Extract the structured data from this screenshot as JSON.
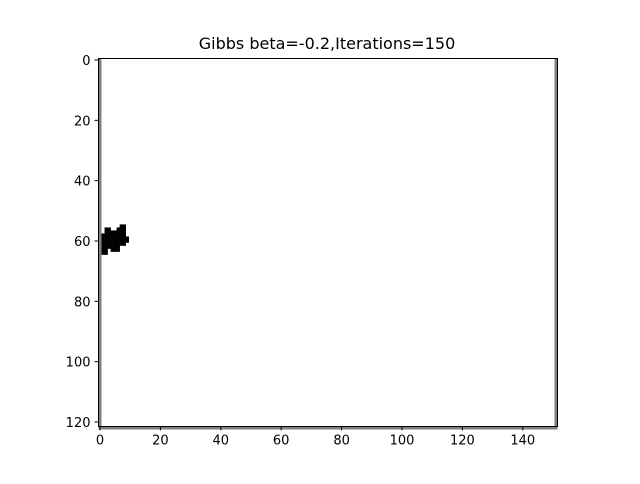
{
  "chart_data": {
    "type": "heatmap",
    "title": "Gibbs beta=-0.2,Iterations=150",
    "xlabel": "",
    "ylabel": "",
    "xlim": [
      -0.5,
      151.5
    ],
    "ylim": [
      121.5,
      -0.5
    ],
    "x_ticks": [
      0,
      20,
      40,
      60,
      80,
      100,
      120,
      140
    ],
    "y_ticks": [
      0,
      20,
      40,
      60,
      80,
      100,
      120
    ],
    "grid": false,
    "colormap": "gray",
    "background_value": "white",
    "cell_value": "black",
    "black_cells": [
      [
        2,
        56
      ],
      [
        3,
        56
      ],
      [
        7,
        55
      ],
      [
        8,
        55
      ],
      [
        2,
        57
      ],
      [
        3,
        57
      ],
      [
        4,
        57
      ],
      [
        5,
        57
      ],
      [
        6,
        57
      ],
      [
        7,
        57
      ],
      [
        8,
        57
      ],
      [
        1,
        58
      ],
      [
        2,
        58
      ],
      [
        3,
        58
      ],
      [
        4,
        58
      ],
      [
        5,
        58
      ],
      [
        6,
        58
      ],
      [
        7,
        58
      ],
      [
        8,
        58
      ],
      [
        1,
        59
      ],
      [
        2,
        59
      ],
      [
        3,
        59
      ],
      [
        4,
        59
      ],
      [
        5,
        59
      ],
      [
        6,
        59
      ],
      [
        7,
        59
      ],
      [
        8,
        59
      ],
      [
        9,
        59
      ],
      [
        1,
        60
      ],
      [
        2,
        60
      ],
      [
        3,
        60
      ],
      [
        4,
        60
      ],
      [
        5,
        60
      ],
      [
        6,
        60
      ],
      [
        7,
        60
      ],
      [
        8,
        60
      ],
      [
        9,
        60
      ],
      [
        1,
        61
      ],
      [
        2,
        61
      ],
      [
        3,
        61
      ],
      [
        4,
        61
      ],
      [
        5,
        61
      ],
      [
        6,
        61
      ],
      [
        7,
        61
      ],
      [
        8,
        61
      ],
      [
        1,
        62
      ],
      [
        2,
        62
      ],
      [
        3,
        62
      ],
      [
        4,
        62
      ],
      [
        5,
        62
      ],
      [
        6,
        62
      ],
      [
        1,
        63
      ],
      [
        2,
        63
      ],
      [
        4,
        63
      ],
      [
        5,
        63
      ],
      [
        6,
        63
      ],
      [
        1,
        64
      ],
      [
        2,
        64
      ],
      [
        7,
        56
      ],
      [
        8,
        56
      ],
      [
        6,
        56
      ],
      [
        0,
        121
      ],
      [
        151,
        0
      ]
    ],
    "border_cells": {
      "columns": [
        0,
        151
      ],
      "rows": [
        121
      ]
    }
  }
}
